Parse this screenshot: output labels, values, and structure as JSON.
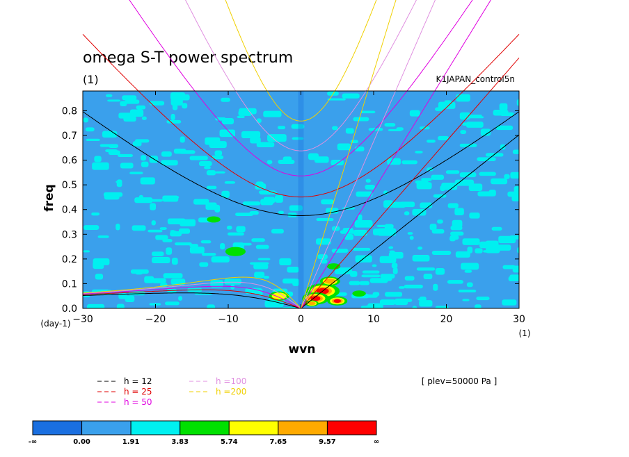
{
  "chart_data": {
    "type": "heatmap",
    "title": "omega S-T power spectrum",
    "units": "(1)",
    "experiment": "K1JAPAN_control5n",
    "annotation": "[ plev=50000 Pa ]",
    "xlabel": "wvn",
    "x_units": "(1)",
    "ylabel": "freq",
    "y_units": "(day-1)",
    "xlim": [
      -30,
      30
    ],
    "ylim": [
      0,
      0.88
    ],
    "xticks": [
      "-30",
      "-20",
      "-10",
      "0",
      "10",
      "20",
      "30"
    ],
    "yticks": [
      "0.0",
      "0.1",
      "0.2",
      "0.3",
      "0.4",
      "0.5",
      "0.6",
      "0.7",
      "0.8"
    ],
    "grid": false,
    "colorbar": {
      "labels": [
        "-∞",
        "0.00",
        "1.91",
        "3.83",
        "5.74",
        "7.65",
        "9.57",
        "∞"
      ],
      "colors": [
        "#1a6fe0",
        "#3aa0ec",
        "#00f0f0",
        "#00e000",
        "#ffff00",
        "#ffaa00",
        "#ff0000"
      ]
    },
    "background_colors": {
      "low": "#3aa0ec",
      "mid": "#00f0f0",
      "lowest": "#1a6fe0"
    },
    "dispersion_curves": [
      {
        "label": "h = 12",
        "h": 12,
        "color": "#000000"
      },
      {
        "label": "h = 25",
        "h": 25,
        "color": "#e00000"
      },
      {
        "label": "h = 50",
        "h": 50,
        "color": "#e000e0"
      },
      {
        "label": "h =100",
        "h": 100,
        "color": "#e090e0"
      },
      {
        "label": "h =200",
        "h": 200,
        "color": "#f0d000"
      }
    ]
  }
}
